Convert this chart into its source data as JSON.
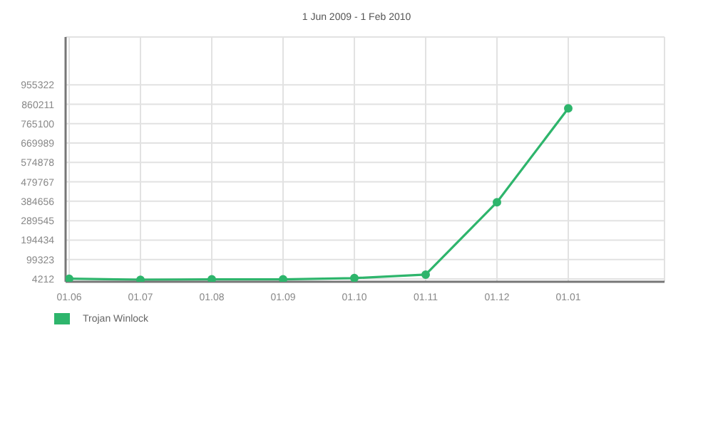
{
  "chart_data": {
    "type": "line",
    "title": "1 Jun 2009 - 1 Feb 2010",
    "categories": [
      "01.06",
      "01.07",
      "01.08",
      "01.09",
      "01.10",
      "01.11",
      "01.12",
      "01.01"
    ],
    "series": [
      {
        "name": "Trojan Winlock",
        "color": "#2eb56c",
        "values": [
          5000,
          0,
          2000,
          2000,
          8000,
          25000,
          380000,
          840000
        ]
      }
    ],
    "ylim": [
      -10000,
      1190000
    ],
    "yticks": [
      4212,
      99323,
      194434,
      289545,
      384656,
      479767,
      574878,
      669989,
      765100,
      860211,
      955322
    ],
    "grid": true,
    "legend": "bottom left",
    "marker": "circle",
    "line_style": "solid"
  }
}
